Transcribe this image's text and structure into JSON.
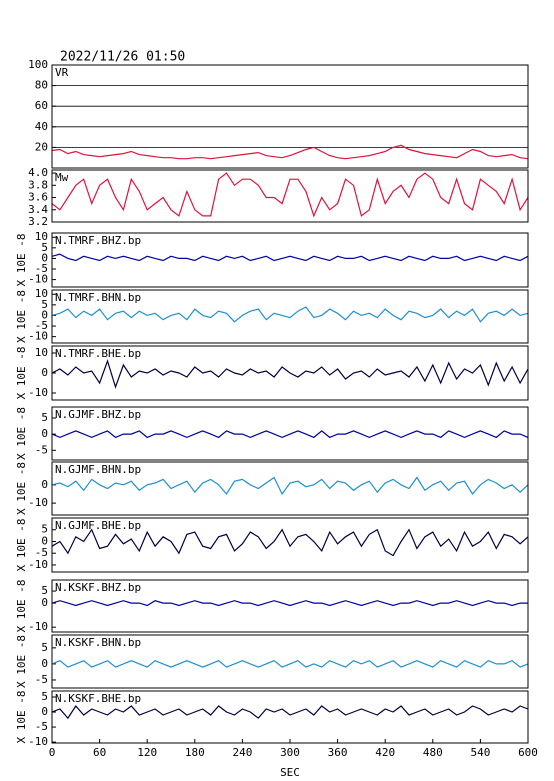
{
  "chart_data": {
    "type": "line",
    "title": "2022/11/26 01:50",
    "xlabel": "SEC",
    "x": [
      0,
      10,
      20,
      30,
      40,
      50,
      60,
      70,
      80,
      90,
      100,
      110,
      120,
      130,
      140,
      150,
      160,
      170,
      180,
      190,
      200,
      210,
      220,
      230,
      240,
      250,
      260,
      270,
      280,
      290,
      300,
      310,
      320,
      330,
      340,
      350,
      360,
      370,
      380,
      390,
      400,
      410,
      420,
      430,
      440,
      450,
      460,
      470,
      480,
      490,
      500,
      510,
      520,
      530,
      540,
      550,
      560,
      570,
      580,
      590,
      600
    ],
    "xlim": [
      0,
      600
    ],
    "xticks": [
      0,
      60,
      120,
      180,
      240,
      300,
      360,
      420,
      480,
      540,
      600
    ],
    "panels": [
      {
        "label": "VR",
        "color": "#dc143c",
        "grid": true,
        "ylim": [
          0,
          100
        ],
        "yticks": [
          20,
          40,
          60,
          80,
          100
        ],
        "values": [
          17,
          18,
          14,
          16,
          13,
          12,
          11,
          12,
          13,
          14,
          16,
          13,
          12,
          11,
          10,
          10,
          9,
          9,
          10,
          10,
          9,
          10,
          11,
          12,
          13,
          14,
          15,
          12,
          11,
          10,
          12,
          15,
          18,
          20,
          16,
          12,
          10,
          9,
          10,
          11,
          12,
          14,
          16,
          20,
          22,
          18,
          16,
          14,
          13,
          12,
          11,
          10,
          14,
          18,
          16,
          12,
          11,
          12,
          13,
          10,
          9
        ]
      },
      {
        "label": "Mw",
        "color": "#dc143c",
        "grid": false,
        "ylim": [
          3.2,
          4.05
        ],
        "yticks": [
          {
            "value": 4,
            "label": "4.0"
          },
          3.8,
          3.6,
          3.4,
          3.2
        ],
        "values": [
          3.5,
          3.4,
          3.6,
          3.8,
          3.9,
          3.5,
          3.8,
          3.9,
          3.6,
          3.4,
          3.9,
          3.7,
          3.4,
          3.5,
          3.6,
          3.4,
          3.3,
          3.7,
          3.4,
          3.3,
          3.3,
          3.9,
          4.0,
          3.8,
          3.9,
          3.9,
          3.8,
          3.6,
          3.6,
          3.5,
          3.9,
          3.9,
          3.7,
          3.3,
          3.6,
          3.4,
          3.5,
          3.9,
          3.8,
          3.3,
          3.4,
          3.9,
          3.5,
          3.7,
          3.8,
          3.6,
          3.9,
          4.0,
          3.9,
          3.6,
          3.5,
          3.9,
          3.5,
          3.4,
          3.9,
          3.8,
          3.7,
          3.5,
          3.9,
          3.4,
          3.6
        ]
      },
      {
        "label": "N.TMRF.BHZ.bp",
        "ylabel": "X 10E -8",
        "color": "#0000a0",
        "grid": false,
        "ylim": [
          -13.5,
          12
        ],
        "yticks": [
          10,
          5,
          0,
          -5,
          -10
        ],
        "values": [
          1,
          2,
          0,
          -1,
          1,
          0,
          -1,
          1,
          0,
          1,
          0,
          -1,
          1,
          0,
          -1,
          1,
          0,
          0,
          -1,
          1,
          0,
          -1,
          1,
          0,
          1,
          -1,
          0,
          1,
          -1,
          0,
          1,
          0,
          -1,
          1,
          0,
          -1,
          1,
          0,
          0,
          1,
          -1,
          0,
          1,
          0,
          -1,
          1,
          0,
          -1,
          1,
          0,
          0,
          1,
          -1,
          0,
          1,
          0,
          -1,
          1,
          0,
          -1,
          1
        ]
      },
      {
        "label": "N.TMRF.BHN.bp",
        "ylabel": "X 10E -8",
        "color": "#1e90d0",
        "grid": false,
        "ylim": [
          -13,
          12
        ],
        "yticks": [
          10,
          5,
          0,
          -5,
          -10
        ],
        "values": [
          0,
          1,
          3,
          -1,
          2,
          0,
          3,
          -2,
          1,
          2,
          -1,
          2,
          0,
          1,
          -2,
          0,
          1,
          -2,
          3,
          0,
          -1,
          2,
          1,
          -3,
          0,
          2,
          3,
          -2,
          1,
          0,
          -1,
          2,
          4,
          -1,
          0,
          3,
          1,
          -2,
          2,
          0,
          1,
          -1,
          3,
          0,
          -2,
          2,
          1,
          -1,
          0,
          3,
          -1,
          2,
          0,
          3,
          -3,
          1,
          2,
          0,
          3,
          0,
          1
        ]
      },
      {
        "label": "N.TMRF.BHE.bp",
        "ylabel": "X 10E -8",
        "color": "#000040",
        "grid": false,
        "ylim": [
          -13.5,
          13.5
        ],
        "yticks": [
          10,
          0,
          -10
        ],
        "values": [
          0,
          2,
          -1,
          3,
          0,
          1,
          -5,
          6,
          -7,
          4,
          -2,
          1,
          0,
          2,
          -1,
          1,
          0,
          -2,
          3,
          0,
          1,
          -2,
          2,
          0,
          -1,
          2,
          0,
          1,
          -2,
          3,
          0,
          -2,
          1,
          0,
          3,
          -1,
          2,
          -3,
          0,
          1,
          -2,
          2,
          -1,
          0,
          1,
          -2,
          3,
          -4,
          4,
          -5,
          5,
          -3,
          2,
          0,
          4,
          -6,
          5,
          -4,
          3,
          -5,
          2
        ]
      },
      {
        "label": "N.GJMF.BHZ.bp",
        "ylabel": "X 10E -8",
        "color": "#0000a0",
        "grid": false,
        "ylim": [
          -8,
          8.4
        ],
        "yticks": [
          5,
          0,
          -5
        ],
        "values": [
          0,
          -1,
          0,
          1,
          0,
          -1,
          0,
          1,
          -1,
          0,
          0,
          1,
          -1,
          0,
          0,
          1,
          0,
          -1,
          0,
          1,
          0,
          -1,
          1,
          0,
          0,
          -1,
          0,
          1,
          0,
          -1,
          0,
          1,
          0,
          -1,
          1,
          -1,
          0,
          0,
          1,
          0,
          -1,
          0,
          1,
          0,
          -1,
          0,
          1,
          0,
          0,
          -1,
          1,
          0,
          -1,
          0,
          1,
          0,
          -1,
          1,
          0,
          0,
          -1
        ]
      },
      {
        "label": "N.GJMF.BHN.bp",
        "ylabel": "X 10E -8",
        "color": "#1e90d0",
        "grid": false,
        "ylim": [
          -16.5,
          12.5
        ],
        "yticks": [
          0,
          -10
        ],
        "values": [
          0,
          1,
          -1,
          2,
          -3,
          3,
          0,
          -2,
          1,
          0,
          2,
          -3,
          0,
          1,
          3,
          -2,
          0,
          2,
          -4,
          1,
          3,
          0,
          -5,
          2,
          3,
          0,
          -2,
          1,
          4,
          -5,
          1,
          2,
          -1,
          0,
          3,
          -2,
          2,
          1,
          -3,
          0,
          2,
          -4,
          1,
          3,
          0,
          -2,
          4,
          -3,
          0,
          2,
          -3,
          1,
          2,
          -5,
          0,
          3,
          1,
          -2,
          0,
          -4,
          0
        ]
      },
      {
        "label": "N.GJMF.BHE.bp",
        "ylabel": "X 10E -8",
        "color": "#000040",
        "grid": false,
        "ylim": [
          -13,
          10
        ],
        "yticks": [
          5,
          0,
          -5,
          -10
        ],
        "values": [
          -2,
          0,
          -5,
          2,
          0,
          5,
          -3,
          -2,
          3,
          -1,
          1,
          -4,
          4,
          -2,
          2,
          0,
          -5,
          3,
          4,
          -2,
          -3,
          2,
          3,
          -4,
          -1,
          4,
          2,
          -3,
          0,
          5,
          -2,
          2,
          3,
          0,
          -4,
          4,
          -1,
          2,
          4,
          -2,
          3,
          5,
          -4,
          -6,
          0,
          5,
          -3,
          2,
          4,
          -2,
          1,
          -4,
          4,
          -2,
          0,
          4,
          -3,
          3,
          2,
          -1,
          2
        ]
      },
      {
        "label": "N.KSKF.BHZ.bp",
        "ylabel": "X 10E -8",
        "color": "#0000a0",
        "grid": false,
        "ylim": [
          -12,
          9.6
        ],
        "yticks": [
          5,
          0,
          -10
        ],
        "values": [
          0,
          1,
          0,
          -1,
          0,
          1,
          0,
          -1,
          0,
          1,
          0,
          0,
          -1,
          1,
          0,
          0,
          -1,
          0,
          1,
          0,
          0,
          -1,
          0,
          1,
          0,
          0,
          -1,
          0,
          1,
          0,
          -1,
          0,
          1,
          0,
          0,
          -1,
          0,
          1,
          0,
          -1,
          0,
          1,
          0,
          -1,
          0,
          0,
          1,
          0,
          -1,
          0,
          0,
          1,
          0,
          -1,
          0,
          1,
          0,
          0,
          -1,
          0,
          0
        ]
      },
      {
        "label": "N.KSKF.BHN.bp",
        "ylabel": "X 10E -8",
        "color": "#1e90d0",
        "grid": false,
        "ylim": [
          -7.5,
          9
        ],
        "yticks": [
          5,
          0,
          -5
        ],
        "values": [
          0,
          1,
          -1,
          0,
          1,
          -1,
          0,
          1,
          -1,
          0,
          1,
          0,
          -1,
          1,
          0,
          -1,
          0,
          1,
          0,
          -1,
          0,
          1,
          -1,
          0,
          1,
          0,
          -1,
          0,
          1,
          -1,
          0,
          1,
          -1,
          0,
          -1,
          1,
          0,
          -1,
          1,
          0,
          1,
          -1,
          0,
          1,
          -1,
          0,
          1,
          0,
          -1,
          1,
          0,
          -1,
          1,
          0,
          -1,
          1,
          0,
          0,
          1,
          -1,
          0
        ]
      },
      {
        "label": "N.KSKF.BHE.bp",
        "ylabel": "X 10E -8",
        "color": "#000040",
        "grid": false,
        "ylim": [
          -10.3,
          7
        ],
        "yticks": [
          5,
          0,
          -5,
          -10
        ],
        "values": [
          0,
          1,
          -2,
          2,
          -1,
          1,
          0,
          -1,
          1,
          0,
          2,
          -1,
          0,
          1,
          -1,
          0,
          1,
          -1,
          0,
          1,
          -1,
          2,
          0,
          -1,
          1,
          0,
          -2,
          1,
          0,
          1,
          -1,
          0,
          1,
          -1,
          2,
          0,
          1,
          -1,
          0,
          1,
          0,
          -1,
          1,
          0,
          2,
          -1,
          0,
          1,
          -1,
          0,
          1,
          -1,
          0,
          2,
          1,
          -1,
          0,
          1,
          0,
          2,
          1
        ]
      }
    ]
  }
}
